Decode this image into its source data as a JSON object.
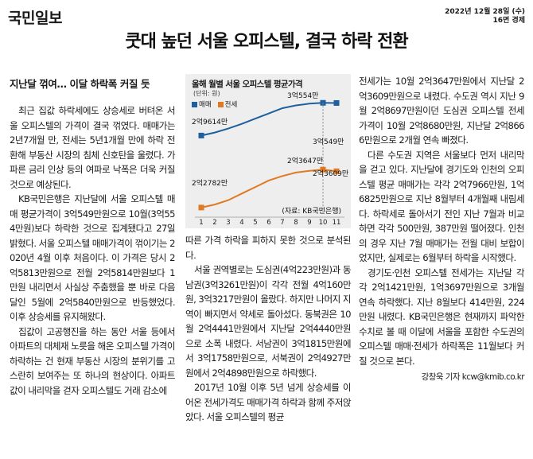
{
  "masthead": "국민일보",
  "dateline": [
    "2022년 12월 28일 (수)",
    "16면 경제"
  ],
  "headline": "쿳대 높던 서울 오피스텔, 결국 하락 전환",
  "subhead": "지난달 꺾여… 이달 하락폭 커질 듯",
  "chart": {
    "title": "올해 월별 서울 오피스텔 평균가격",
    "unit": "(단위: 원)",
    "legend": [
      {
        "name": "매매",
        "color": "#1f5f9e"
      },
      {
        "name": "전세",
        "color": "#e07a22"
      }
    ],
    "source": "(자료: KB국민은행)",
    "labels": {
      "sale_start": "2억9614만",
      "sale_peak": "3억554만",
      "sale_end": "3억549만",
      "jeonse_start": "2억2782만",
      "jeonse_peak": "2억3647만",
      "jeonse_end": "2억3609만"
    }
  },
  "chart_data": {
    "type": "line",
    "title": "올해 월별 서울 오피스텔 평균가격",
    "x": [
      1,
      2,
      3,
      4,
      5,
      6,
      7,
      8,
      9,
      10,
      11
    ],
    "xlabel": "",
    "ylabel": "",
    "series": [
      {
        "name": "매매",
        "values": [
          29614,
          29700,
          29815,
          29950,
          30100,
          30250,
          30400,
          30480,
          30530,
          30554,
          30549
        ]
      },
      {
        "name": "전세",
        "values": [
          22782,
          22850,
          22950,
          23100,
          23250,
          23400,
          23500,
          23580,
          23620,
          23647,
          23609
        ]
      }
    ],
    "grid": false,
    "legend": "top-left"
  },
  "left_paragraphs": [
    "최근 집값 하락세에도 상승세로 버텨온 서울 오피스텔의 가격이 결국 꺾였다. 매매가는 2년7개월 만, 전세는 5년1개월 만에 하락 전환해 부동산 시장의 침체 신호탄을 울렸다. 가파른 금리 인상 등의 여파로 낙폭은 더욱 커질 것으로 예상된다.",
    "KB국민은행은 지난달에 서울 오피스텔 매매 평균가격이 3억549만원으로 10월(3억554만원)보다 하락한 것으로 집계됐다고 27일 밝혔다. 서울 오피스텔 매매가격이 꺾이기는 2020년 4월 이후 처음이다. 이 가격은 당시 2억5813만원으로 전월 2억5814만원보다 1만원 내리면서 사실상 주춤했을 뿐 바로 다음 달인 5월에 2억5840만원으로 반등했었다. 이후 상승세를 유지해왔다.",
    "집값이 고공행진을 하는 동안 서울 등에서 아파트의 대체재 노릇을 해온 오피스텔 가격이 하락하는 건 현재 부동산 시장의 분위기를 고스란히 보여주는 또 하나의 현상이다. 아파트값이 내리막을 걷자 오피스텔도 거래 감소에"
  ],
  "mid_paragraphs": [
    "따른 가격 하락을 피하지 못한 것으로 분석된다.",
    "서울 권역별로는 도심권(4억223만원)과 동남권(3억3261만원)이 각각 전월 4억160만원, 3억3217만원이 올랐다. 하지만 나머지 지역이 빠지면서 약세로 돌아섰다. 동북권은 10월 2억4441만원에서 지난달 2억4440만원으로 소폭 내렸다. 서남권이 3억1815만원에서 3억1758만원으로, 서북권이 2억4927만원에서 2억4898만원으로 하락했다.",
    "2017년 10월 이후 5년 넘게 상승세를 이어온 전세가격도 매매가격 하락과 함께 주저앉았다. 서울 오피스텔의 평균"
  ],
  "right_paragraphs": [
    "전세가는 10월 2억3647만원에서 지난달 2억3609만원으로 내렸다. 수도권 역시 지난 9월 2억8697만원이던 도심권 오피스텔 전세가격이 10월 2억8680만원, 지난달 2억8666만원으로 2개월 연속 빠졌다.",
    "다른 수도권 지역은 서울보다 먼저 내리막을 걷고 있다. 지난달에 경기도와 인천의 오피스텔 평균 매매가는 각각 2억7966만원, 1억6825만원으로 지난 8월부터 4개월째 내림세다. 하락세로 돌아서기 전인 지난 7월과 비교하면 각각 500만원, 387만원 떨어졌다. 인천의 경우 지난 7월 매매가는 전월 대비 보합이었지만, 실제로는 6월부터 하락을 시작했다.",
    "경기도·인천 오피스텔 전세가는 지난달 각각 2억1421만원, 1억3697만원으로 3개월 연속 하락했다. 지난 8월보다 414만원, 224만원 내렸다. KB국민은행은 현재까지 파악한 수치로 볼 때 이달에 서울을 포함한 수도권의 오피스텔 매매·전세가 하락폭은 11월보다 커질 것으로 본다."
  ],
  "byline": "강창욱 기자 kcw@kmib.co.kr"
}
